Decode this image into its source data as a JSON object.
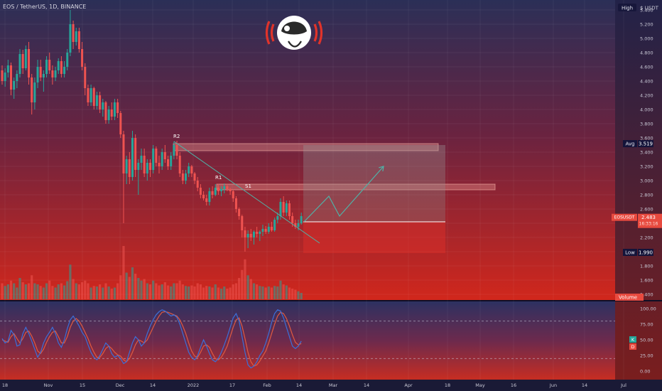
{
  "header": {
    "symbol_title": "EOS / TetherUS, 1D, BINANCE"
  },
  "scale_mode": {
    "label": "High",
    "unit": "$ USDT"
  },
  "colors": {
    "up": "#26a69a",
    "down": "#ef5350",
    "main_bg_top": "#2b2f57",
    "main_bg_bottom": "#d1271c",
    "osc_bg_top": "#2d3161",
    "osc_bg_bottom": "#c72d22",
    "axis_panel": "#1e1e40",
    "stoch_k": "#3b6fd8",
    "stoch_d": "#e05a40",
    "target_box": "#8c8c8c"
  },
  "logo": {
    "name": "astronaut-logo"
  },
  "chart_data": {
    "type": "candlestick",
    "y_axis": {
      "ticks": [
        "5.400",
        "5.200",
        "5.000",
        "4.800",
        "4.600",
        "4.400",
        "4.200",
        "4.000",
        "3.800",
        "3.600",
        "3.400",
        "3.200",
        "3.000",
        "2.800",
        "2.600",
        "2.400",
        "2.200",
        "2.000",
        "1.800",
        "1.600",
        "1.400"
      ],
      "range": [
        1.38,
        5.48
      ]
    },
    "x_axis": {
      "ticks": [
        "18",
        "Nov",
        "15",
        "Dec",
        "14",
        "2022",
        "17",
        "Feb",
        "14",
        "Mar",
        "14",
        "Apr",
        "18",
        "May",
        "16",
        "Jun",
        "14",
        "Jul"
      ]
    },
    "price_labels": {
      "avg": {
        "label": "Avg",
        "value": "3.519"
      },
      "current": {
        "label": "EOSUSDT",
        "value": "2.483",
        "countdown": "16:33:16"
      },
      "low": {
        "label": "Low",
        "value": "1.990"
      },
      "volume": {
        "label": "Volume"
      }
    },
    "annotations": {
      "r2": "R2",
      "r1": "R1",
      "s1": "S1"
    },
    "resistance_zones": [
      {
        "label": "R2",
        "from": 3.42,
        "to": 3.52
      },
      {
        "label": "R1",
        "from": 2.87,
        "to": 2.95
      }
    ],
    "trendline": {
      "from": {
        "x": 245,
        "y": 3.55
      },
      "to": {
        "x": 450,
        "y": 2.12
      }
    },
    "projection": {
      "entry": 2.42,
      "target_top": 3.5,
      "stop_bottom": 1.98,
      "path": [
        [
          428,
          2.42
        ],
        [
          463,
          2.78
        ],
        [
          478,
          2.5
        ],
        [
          540,
          3.2
        ]
      ]
    },
    "candles": [
      [
        4.55,
        4.62,
        4.35,
        4.4
      ],
      [
        4.4,
        4.58,
        4.32,
        4.52
      ],
      [
        4.52,
        4.7,
        4.45,
        4.62
      ],
      [
        4.62,
        4.66,
        4.2,
        4.28
      ],
      [
        4.28,
        4.45,
        4.15,
        4.4
      ],
      [
        4.4,
        4.55,
        4.3,
        4.5
      ],
      [
        4.5,
        4.85,
        4.45,
        4.78
      ],
      [
        4.78,
        4.84,
        4.5,
        4.58
      ],
      [
        4.58,
        4.9,
        4.55,
        4.85
      ],
      [
        4.85,
        4.95,
        4.35,
        4.45
      ],
      [
        4.45,
        4.5,
        3.93,
        4.1
      ],
      [
        4.1,
        4.45,
        4.0,
        4.38
      ],
      [
        4.38,
        4.7,
        4.3,
        4.6
      ],
      [
        4.6,
        4.7,
        4.4,
        4.45
      ],
      [
        4.45,
        4.55,
        4.25,
        4.5
      ],
      [
        4.5,
        4.75,
        4.45,
        4.7
      ],
      [
        4.7,
        4.8,
        4.5,
        4.55
      ],
      [
        4.55,
        4.62,
        4.35,
        4.45
      ],
      [
        4.45,
        4.6,
        4.4,
        4.55
      ],
      [
        4.55,
        4.72,
        4.5,
        4.68
      ],
      [
        4.68,
        4.75,
        4.45,
        4.5
      ],
      [
        4.5,
        4.68,
        4.45,
        4.6
      ],
      [
        4.6,
        4.85,
        4.55,
        4.8
      ],
      [
        4.8,
        5.4,
        4.75,
        5.2
      ],
      [
        5.2,
        5.25,
        4.85,
        4.95
      ],
      [
        4.95,
        5.15,
        4.9,
        5.1
      ],
      [
        5.1,
        5.15,
        4.8,
        4.85
      ],
      [
        4.85,
        4.95,
        4.55,
        4.6
      ],
      [
        4.6,
        4.65,
        4.2,
        4.3
      ],
      [
        4.3,
        4.35,
        4.05,
        4.1
      ],
      [
        4.1,
        4.35,
        4.05,
        4.3
      ],
      [
        4.3,
        4.32,
        4.0,
        4.05
      ],
      [
        4.05,
        4.25,
        4.0,
        4.2
      ],
      [
        4.2,
        4.25,
        3.95,
        4.0
      ],
      [
        4.0,
        4.15,
        3.9,
        4.1
      ],
      [
        4.1,
        4.12,
        3.8,
        3.85
      ],
      [
        3.85,
        4.05,
        3.8,
        4.0
      ],
      [
        4.0,
        4.1,
        3.85,
        3.9
      ],
      [
        3.9,
        4.15,
        3.85,
        4.1
      ],
      [
        4.1,
        4.15,
        3.88,
        3.95
      ],
      [
        3.95,
        3.98,
        3.6,
        3.65
      ],
      [
        3.65,
        3.7,
        2.4,
        3.1
      ],
      [
        3.1,
        3.35,
        2.95,
        3.3
      ],
      [
        3.3,
        3.4,
        2.95,
        3.05
      ],
      [
        3.05,
        3.7,
        3.0,
        3.6
      ],
      [
        3.6,
        3.65,
        3.05,
        3.15
      ],
      [
        3.15,
        3.3,
        2.8,
        3.25
      ],
      [
        3.25,
        3.45,
        3.15,
        3.35
      ],
      [
        3.35,
        3.45,
        3.05,
        3.1
      ],
      [
        3.1,
        3.3,
        3.0,
        3.25
      ],
      [
        3.25,
        3.3,
        3.05,
        3.15
      ],
      [
        3.15,
        3.5,
        3.1,
        3.45
      ],
      [
        3.45,
        3.48,
        3.2,
        3.25
      ],
      [
        3.25,
        3.35,
        3.1,
        3.2
      ],
      [
        3.2,
        3.45,
        3.15,
        3.4
      ],
      [
        3.4,
        3.5,
        3.25,
        3.3
      ],
      [
        3.3,
        3.35,
        3.15,
        3.2
      ],
      [
        3.2,
        3.4,
        3.15,
        3.35
      ],
      [
        3.35,
        3.55,
        3.3,
        3.5
      ],
      [
        3.5,
        3.56,
        3.3,
        3.35
      ],
      [
        3.35,
        3.4,
        3.05,
        3.1
      ],
      [
        3.1,
        3.15,
        2.95,
        3.0
      ],
      [
        3.0,
        3.15,
        2.95,
        3.1
      ],
      [
        3.1,
        3.25,
        3.05,
        3.2
      ],
      [
        3.2,
        3.22,
        3.05,
        3.1
      ],
      [
        3.1,
        3.12,
        2.95,
        3.0
      ],
      [
        3.0,
        3.05,
        2.85,
        2.9
      ],
      [
        2.9,
        2.95,
        2.75,
        2.8
      ],
      [
        2.8,
        2.85,
        2.72,
        2.75
      ],
      [
        2.75,
        2.8,
        2.65,
        2.7
      ],
      [
        2.7,
        2.9,
        2.65,
        2.85
      ],
      [
        2.85,
        2.92,
        2.75,
        2.8
      ],
      [
        2.8,
        2.95,
        2.78,
        2.9
      ],
      [
        2.9,
        2.95,
        2.8,
        2.85
      ],
      [
        2.85,
        2.92,
        2.78,
        2.88
      ],
      [
        2.88,
        2.96,
        2.82,
        2.92
      ],
      [
        2.92,
        2.95,
        2.85,
        2.88
      ],
      [
        2.88,
        2.9,
        2.8,
        2.85
      ],
      [
        2.85,
        2.88,
        2.7,
        2.75
      ],
      [
        2.75,
        2.78,
        2.55,
        2.6
      ],
      [
        2.6,
        2.62,
        2.45,
        2.5
      ],
      [
        2.5,
        2.52,
        2.2,
        2.3
      ],
      [
        2.3,
        2.35,
        2.0,
        2.2
      ],
      [
        2.2,
        2.3,
        2.05,
        2.25
      ],
      [
        2.25,
        2.32,
        2.15,
        2.2
      ],
      [
        2.2,
        2.3,
        2.1,
        2.28
      ],
      [
        2.28,
        2.35,
        2.2,
        2.25
      ],
      [
        2.25,
        2.3,
        2.15,
        2.28
      ],
      [
        2.28,
        2.38,
        2.22,
        2.32
      ],
      [
        2.32,
        2.36,
        2.25,
        2.28
      ],
      [
        2.28,
        2.4,
        2.25,
        2.35
      ],
      [
        2.35,
        2.42,
        2.28,
        2.3
      ],
      [
        2.3,
        2.48,
        2.28,
        2.45
      ],
      [
        2.45,
        2.55,
        2.4,
        2.5
      ],
      [
        2.5,
        2.75,
        2.45,
        2.7
      ],
      [
        2.7,
        2.78,
        2.5,
        2.55
      ],
      [
        2.55,
        2.72,
        2.5,
        2.68
      ],
      [
        2.68,
        2.72,
        2.45,
        2.5
      ],
      [
        2.5,
        2.55,
        2.35,
        2.4
      ],
      [
        2.4,
        2.45,
        2.32,
        2.35
      ],
      [
        2.35,
        2.45,
        2.3,
        2.4
      ],
      [
        2.4,
        2.55,
        2.38,
        2.5
      ]
    ],
    "volume": [
      0.3,
      0.25,
      0.28,
      0.35,
      0.3,
      0.22,
      0.4,
      0.32,
      0.28,
      0.3,
      0.45,
      0.3,
      0.28,
      0.25,
      0.22,
      0.3,
      0.35,
      0.25,
      0.22,
      0.28,
      0.3,
      0.26,
      0.34,
      0.65,
      0.38,
      0.3,
      0.28,
      0.32,
      0.35,
      0.3,
      0.22,
      0.25,
      0.24,
      0.28,
      0.22,
      0.3,
      0.24,
      0.2,
      0.22,
      0.3,
      0.45,
      1.0,
      0.5,
      0.42,
      0.6,
      0.48,
      0.4,
      0.35,
      0.38,
      0.3,
      0.28,
      0.35,
      0.3,
      0.26,
      0.28,
      0.32,
      0.26,
      0.24,
      0.3,
      0.3,
      0.35,
      0.28,
      0.25,
      0.24,
      0.26,
      0.24,
      0.3,
      0.28,
      0.22,
      0.25,
      0.24,
      0.22,
      0.28,
      0.22,
      0.2,
      0.24,
      0.2,
      0.22,
      0.28,
      0.3,
      0.4,
      0.55,
      0.75,
      0.45,
      0.38,
      0.3,
      0.28,
      0.25,
      0.24,
      0.22,
      0.24,
      0.22,
      0.25,
      0.24,
      0.35,
      0.28,
      0.26,
      0.22,
      0.2,
      0.18,
      0.15,
      0.12
    ],
    "oscillator": {
      "type": "stochastic",
      "ticks": [
        "100.00",
        "75.00",
        "50.00",
        "25.00",
        "0.00"
      ],
      "range": [
        -8,
        108
      ],
      "bands": [
        80,
        20
      ],
      "k_label": "K",
      "d_label": "D",
      "k": [
        52,
        45,
        48,
        65,
        58,
        40,
        42,
        60,
        70,
        60,
        48,
        35,
        22,
        30,
        45,
        55,
        62,
        70,
        60,
        45,
        38,
        50,
        68,
        82,
        88,
        80,
        72,
        62,
        55,
        42,
        30,
        22,
        18,
        25,
        35,
        45,
        40,
        28,
        22,
        25,
        20,
        12,
        15,
        30,
        45,
        55,
        50,
        40,
        45,
        60,
        72,
        82,
        90,
        95,
        98,
        96,
        92,
        88,
        90,
        86,
        75,
        60,
        45,
        30,
        22,
        18,
        25,
        38,
        50,
        40,
        28,
        18,
        15,
        20,
        30,
        42,
        55,
        70,
        85,
        92,
        80,
        55,
        30,
        10,
        5,
        8,
        15,
        25,
        32,
        45,
        60,
        78,
        92,
        98,
        96,
        85,
        70,
        55,
        40,
        36,
        40,
        48
      ],
      "d": [
        50,
        48,
        46,
        55,
        60,
        52,
        45,
        52,
        62,
        64,
        56,
        45,
        32,
        28,
        35,
        46,
        55,
        62,
        64,
        55,
        45,
        45,
        55,
        70,
        80,
        84,
        80,
        72,
        62,
        52,
        40,
        30,
        22,
        22,
        28,
        36,
        40,
        36,
        30,
        26,
        24,
        18,
        15,
        20,
        30,
        42,
        50,
        48,
        45,
        50,
        60,
        70,
        80,
        88,
        94,
        95,
        94,
        92,
        90,
        88,
        82,
        72,
        60,
        45,
        32,
        24,
        22,
        30,
        40,
        42,
        38,
        28,
        20,
        18,
        22,
        30,
        40,
        55,
        70,
        82,
        85,
        72,
        52,
        30,
        15,
        8,
        10,
        16,
        24,
        32,
        45,
        60,
        75,
        88,
        94,
        92,
        84,
        72,
        58,
        46,
        42,
        44
      ]
    }
  }
}
